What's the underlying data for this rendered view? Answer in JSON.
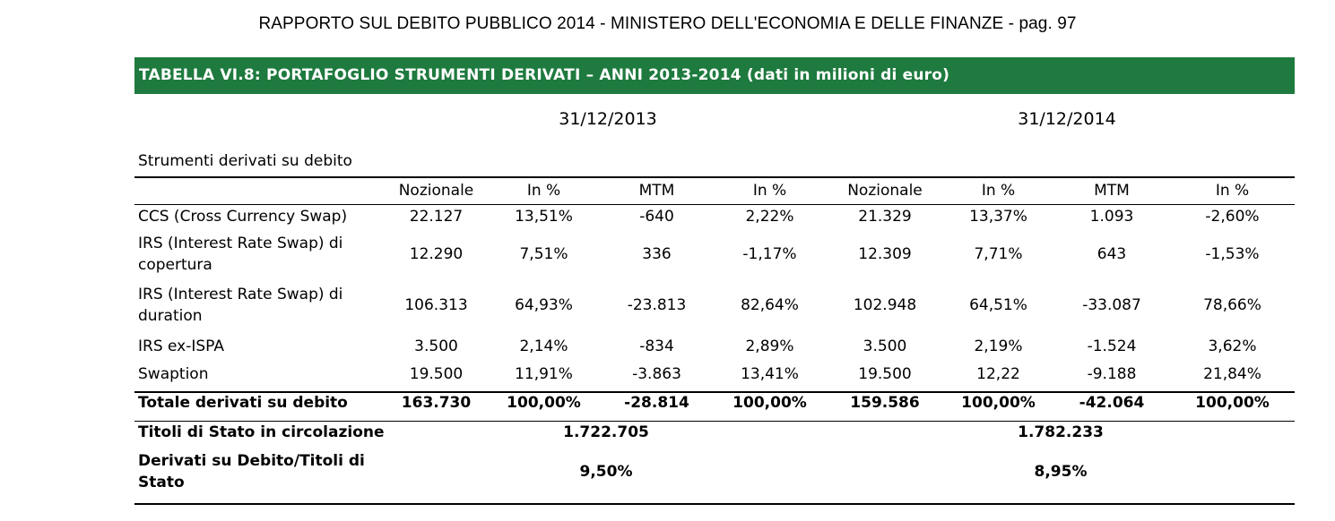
{
  "page_header": "RAPPORTO SUL DEBITO PUBBLICO 2014 - MINISTERO DELL'ECONOMIA E DELLE FINANZE - pag. 97",
  "table_title": "TABELLA VI.8: PORTAFOGLIO STRUMENTI DERIVATI – ANNI 2013-2014 (dati in milioni di euro)",
  "dates": [
    "31/12/2013",
    "31/12/2014"
  ],
  "section_label": "Strumenti derivati su debito",
  "columns": [
    "Nozionale",
    "In %",
    "MTM",
    "In %",
    "Nozionale",
    "In %",
    "MTM",
    "In %"
  ],
  "rows": [
    {
      "label": "CCS (Cross Currency Swap)",
      "values": [
        "22.127",
        "13,51%",
        "-640",
        "2,22%",
        "21.329",
        "13,37%",
        "1.093",
        "-2,60%"
      ]
    },
    {
      "label": "IRS (Interest Rate Swap) di copertura",
      "values": [
        "12.290",
        "7,51%",
        "336",
        "-1,17%",
        "12.309",
        "7,71%",
        "643",
        "-1,53%"
      ]
    },
    {
      "label": "IRS (Interest Rate Swap) di duration",
      "values": [
        "106.313",
        "64,93%",
        "-23.813",
        "82,64%",
        "102.948",
        "64,51%",
        "-33.087",
        "78,66%"
      ]
    },
    {
      "label": "IRS ex-ISPA",
      "values": [
        "3.500",
        "2,14%",
        "-834",
        "2,89%",
        "3.500",
        "2,19%",
        "-1.524",
        "3,62%"
      ]
    },
    {
      "label": "Swaption",
      "values": [
        "19.500",
        "11,91%",
        "-3.863",
        "13,41%",
        "19.500",
        "12,22",
        "-9.188",
        "21,84%"
      ]
    }
  ],
  "total": {
    "label": "Totale derivati su debito",
    "values": [
      "163.730",
      "100,00%",
      "-28.814",
      "100,00%",
      "159.586",
      "100,00%",
      "-42.064",
      "100,00%"
    ]
  },
  "titoli": {
    "label": "Titoli di Stato in circolazione",
    "values": [
      "1.722.705",
      "1.782.233"
    ]
  },
  "ratio": {
    "label": "Derivati su Debito/Titoli di Stato",
    "values": [
      "9,50%",
      "8,95%"
    ]
  }
}
